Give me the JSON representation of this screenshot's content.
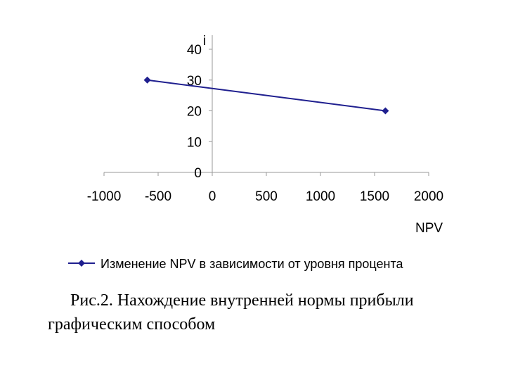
{
  "chart_data": {
    "type": "scatter",
    "xlabel": "NPV",
    "ylabel": "i",
    "xlim": [
      -1000,
      2000
    ],
    "ylim": [
      0,
      40
    ],
    "x_ticks": [
      "-1000",
      "-500",
      "0",
      "500",
      "1000",
      "1500",
      "2000"
    ],
    "y_ticks": [
      "0",
      "10",
      "20",
      "30",
      "40"
    ],
    "series": [
      {
        "name": "Изменение NPV в зависимости от уровня процента",
        "color": "#1f1f8f",
        "marker": "diamond",
        "x": [
          -600,
          1600
        ],
        "y": [
          30,
          20
        ]
      }
    ],
    "legend_position": "bottom",
    "grid": false
  },
  "caption": {
    "line1": "Рис.2. Нахождение внутренней нормы прибыли",
    "line2": "графическим способом"
  }
}
